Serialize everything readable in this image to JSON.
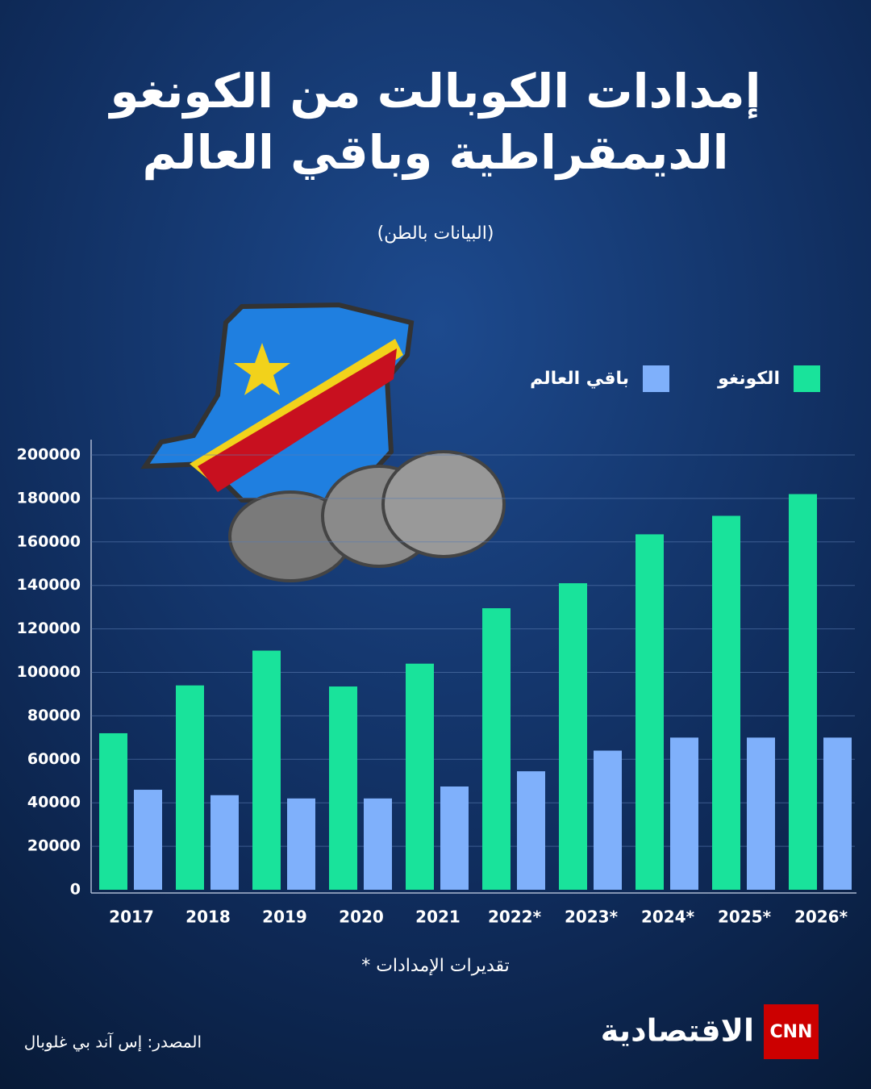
{
  "chart_data": {
    "type": "bar",
    "title": [
      "إمدادات الكوبالت من الكونغو",
      "الديمقراطية وباقي العالم"
    ],
    "subtitle": "(البيانات بالطن)",
    "categories": [
      "2017",
      "2018",
      "2019",
      "2020",
      "2021",
      "2022*",
      "2023*",
      "2024*",
      "2025*",
      "2026*"
    ],
    "series": [
      {
        "name": "الكونغو",
        "color": "#19e39b",
        "values": [
          72000,
          94000,
          110000,
          93500,
          104000,
          129500,
          141000,
          163500,
          172000,
          182000
        ]
      },
      {
        "name": "باقي العالم",
        "color": "#7fb0fb",
        "values": [
          46000,
          43500,
          42000,
          42000,
          47500,
          54500,
          64000,
          70000,
          70000,
          70000
        ]
      }
    ],
    "ylim": [
      0,
      200000
    ],
    "yticks": [
      0,
      20000,
      40000,
      60000,
      80000,
      100000,
      120000,
      140000,
      160000,
      180000,
      200000
    ],
    "grid": true,
    "footnote": "* تقديرات الإمدادات",
    "source": "المصدر: إس آند بي غلوبال"
  },
  "branding": {
    "network": "CNN",
    "name": "الاقتصادية"
  }
}
